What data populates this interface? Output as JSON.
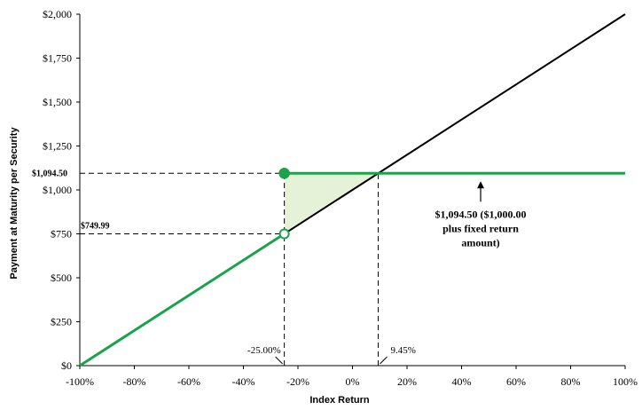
{
  "chart_data": {
    "type": "line",
    "title": "",
    "xlabel": "Index Return",
    "ylabel": "Payment at Maturity per Security",
    "xlim": [
      -100,
      100
    ],
    "ylim": [
      0,
      2000
    ],
    "grid": false,
    "x_ticks": [
      -100,
      -80,
      -60,
      -40,
      -20,
      0,
      20,
      40,
      60,
      80,
      100
    ],
    "x_tick_labels": [
      "-100%",
      "-80%",
      "-60%",
      "-40%",
      "-20%",
      "0%",
      "20%",
      "40%",
      "60%",
      "80%",
      "100%"
    ],
    "y_ticks": [
      0,
      250,
      500,
      750,
      1000,
      1250,
      1500,
      1750,
      2000
    ],
    "y_tick_labels": [
      "$0",
      "$250",
      "$500",
      "$750",
      "$1,000",
      "$1,250",
      "$1,500",
      "$1,750",
      "$2,000"
    ],
    "series": [
      {
        "color": "#000000",
        "points": [
          [
            -25,
            750
          ],
          [
            100,
            2000
          ]
        ]
      },
      {
        "color": "#1aa34a",
        "points": [
          [
            -100,
            0
          ],
          [
            -25,
            749.99
          ]
        ]
      },
      {
        "color": "#1aa34a",
        "points": [
          [
            -25,
            1094.5
          ],
          [
            100,
            1094.5
          ]
        ]
      }
    ],
    "filled_marker": {
      "x": -25,
      "y": 1094.5,
      "color": "#1aa34a"
    },
    "open_marker": {
      "x": -25,
      "y": 749.99,
      "color": "#1aa34a"
    },
    "shaded_region": {
      "points": [
        [
          -25,
          750
        ],
        [
          -25,
          1094.5
        ],
        [
          9.45,
          1094.5
        ]
      ],
      "color": "#e6f2d8"
    },
    "reference_lines": [
      {
        "orientation": "h",
        "y": 1094.5,
        "x_from": -100,
        "x_to": -25
      },
      {
        "orientation": "h",
        "y": 749.99,
        "x_from": -100,
        "x_to": -25
      },
      {
        "orientation": "v",
        "x": -25,
        "y_from": 0,
        "y_to": 1094.5
      },
      {
        "orientation": "v",
        "x": 9.45,
        "y_from": 0,
        "y_to": 1094.5
      }
    ],
    "y_value_labels": [
      "$1,094.50",
      "$749.99"
    ],
    "x_value_labels": [
      "-25.00%",
      "9.45%"
    ],
    "annotation": {
      "lines": [
        "$1,094.50 ($1,000.00",
        "plus fixed return",
        "amount)"
      ],
      "arrow_points_to": {
        "x": 47,
        "y": 1094.5
      }
    }
  }
}
